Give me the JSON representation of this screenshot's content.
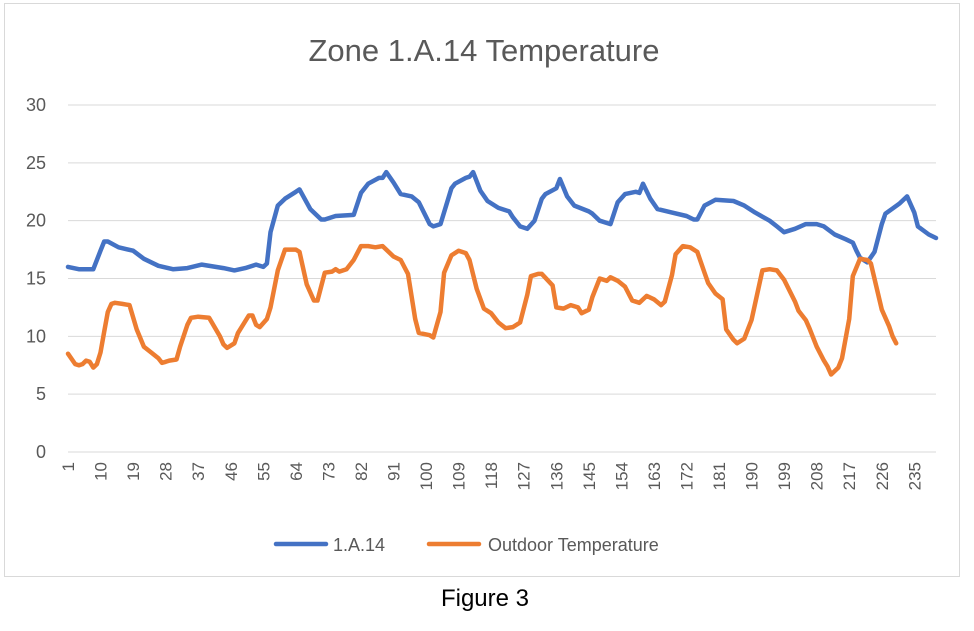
{
  "figure": {
    "caption": "Figure 3"
  },
  "chart_data": {
    "type": "line",
    "title": "Zone 1.A.14 Temperature",
    "xlabel": "",
    "ylabel": "",
    "xlim": [
      1,
      241
    ],
    "ylim": [
      0,
      30
    ],
    "y_ticks": [
      0,
      5,
      10,
      15,
      20,
      25,
      30
    ],
    "x_tick_labels": [
      "1",
      "10",
      "19",
      "28",
      "37",
      "46",
      "55",
      "64",
      "73",
      "82",
      "91",
      "100",
      "109",
      "118",
      "127",
      "136",
      "145",
      "154",
      "163",
      "172",
      "181",
      "190",
      "199",
      "208",
      "217",
      "226",
      "235"
    ],
    "grid": "horizontal",
    "legend_position": "bottom",
    "series": [
      {
        "name": "1.A.14",
        "color": "#4472c4",
        "points": [
          [
            1,
            16.0
          ],
          [
            4,
            15.8
          ],
          [
            8,
            15.8
          ],
          [
            10,
            17.4
          ],
          [
            11,
            18.2
          ],
          [
            12,
            18.2
          ],
          [
            15,
            17.7
          ],
          [
            19,
            17.4
          ],
          [
            22,
            16.7
          ],
          [
            26,
            16.1
          ],
          [
            30,
            15.8
          ],
          [
            34,
            15.9
          ],
          [
            38,
            16.2
          ],
          [
            44,
            15.9
          ],
          [
            47,
            15.7
          ],
          [
            50,
            15.9
          ],
          [
            53,
            16.2
          ],
          [
            55,
            16.0
          ],
          [
            56,
            16.3
          ],
          [
            57,
            19.0
          ],
          [
            59,
            21.3
          ],
          [
            61,
            21.9
          ],
          [
            64,
            22.5
          ],
          [
            65,
            22.7
          ],
          [
            68,
            21.0
          ],
          [
            71,
            20.1
          ],
          [
            72,
            20.1
          ],
          [
            75,
            20.4
          ],
          [
            80,
            20.5
          ],
          [
            82,
            22.4
          ],
          [
            84,
            23.2
          ],
          [
            87,
            23.7
          ],
          [
            88,
            23.7
          ],
          [
            89,
            24.2
          ],
          [
            91,
            23.3
          ],
          [
            93,
            22.3
          ],
          [
            96,
            22.1
          ],
          [
            98,
            21.6
          ],
          [
            101,
            19.7
          ],
          [
            102,
            19.5
          ],
          [
            104,
            19.7
          ],
          [
            107,
            22.8
          ],
          [
            108,
            23.2
          ],
          [
            111,
            23.7
          ],
          [
            112,
            23.8
          ],
          [
            113,
            24.2
          ],
          [
            115,
            22.6
          ],
          [
            117,
            21.7
          ],
          [
            120,
            21.1
          ],
          [
            123,
            20.8
          ],
          [
            124,
            20.3
          ],
          [
            126,
            19.5
          ],
          [
            128,
            19.3
          ],
          [
            130,
            20.0
          ],
          [
            132,
            21.9
          ],
          [
            133,
            22.3
          ],
          [
            136,
            22.8
          ],
          [
            137,
            23.6
          ],
          [
            139,
            22.1
          ],
          [
            141,
            21.3
          ],
          [
            145,
            20.8
          ],
          [
            146,
            20.6
          ],
          [
            148,
            20.0
          ],
          [
            151,
            19.7
          ],
          [
            153,
            21.6
          ],
          [
            155,
            22.3
          ],
          [
            158,
            22.5
          ],
          [
            159,
            22.4
          ],
          [
            160,
            23.2
          ],
          [
            162,
            21.9
          ],
          [
            164,
            21.0
          ],
          [
            168,
            20.7
          ],
          [
            172,
            20.4
          ],
          [
            174,
            20.1
          ],
          [
            175,
            20.1
          ],
          [
            177,
            21.3
          ],
          [
            180,
            21.8
          ],
          [
            185,
            21.7
          ],
          [
            188,
            21.3
          ],
          [
            191,
            20.7
          ],
          [
            195,
            20.0
          ],
          [
            197,
            19.5
          ],
          [
            199,
            19.0
          ],
          [
            202,
            19.3
          ],
          [
            205,
            19.7
          ],
          [
            208,
            19.7
          ],
          [
            210,
            19.5
          ],
          [
            213,
            18.8
          ],
          [
            216,
            18.4
          ],
          [
            218,
            18.1
          ],
          [
            219,
            17.4
          ],
          [
            220,
            16.8
          ],
          [
            222,
            16.4
          ],
          [
            224,
            17.3
          ],
          [
            226,
            19.7
          ],
          [
            227,
            20.6
          ],
          [
            231,
            21.5
          ],
          [
            233,
            22.1
          ],
          [
            235,
            20.7
          ],
          [
            236,
            19.5
          ],
          [
            239,
            18.8
          ],
          [
            241,
            18.5
          ]
        ]
      },
      {
        "name": "Outdoor Temperature",
        "color": "#ed7d31",
        "points": [
          [
            1,
            8.5
          ],
          [
            3,
            7.6
          ],
          [
            4,
            7.5
          ],
          [
            5,
            7.6
          ],
          [
            6,
            7.9
          ],
          [
            7,
            7.8
          ],
          [
            8,
            7.3
          ],
          [
            9,
            7.6
          ],
          [
            10,
            8.6
          ],
          [
            11,
            10.4
          ],
          [
            12,
            12.1
          ],
          [
            13,
            12.8
          ],
          [
            14,
            12.9
          ],
          [
            16,
            12.8
          ],
          [
            18,
            12.7
          ],
          [
            20,
            10.6
          ],
          [
            22,
            9.1
          ],
          [
            24,
            8.6
          ],
          [
            26,
            8.1
          ],
          [
            27,
            7.7
          ],
          [
            28,
            7.8
          ],
          [
            29,
            7.9
          ],
          [
            31,
            8.0
          ],
          [
            32,
            9.1
          ],
          [
            34,
            11.0
          ],
          [
            35,
            11.6
          ],
          [
            37,
            11.7
          ],
          [
            40,
            11.6
          ],
          [
            43,
            10.0
          ],
          [
            44,
            9.3
          ],
          [
            45,
            9.0
          ],
          [
            47,
            9.4
          ],
          [
            48,
            10.3
          ],
          [
            51,
            11.8
          ],
          [
            52,
            11.8
          ],
          [
            53,
            11.0
          ],
          [
            54,
            10.8
          ],
          [
            56,
            11.5
          ],
          [
            57,
            12.5
          ],
          [
            59,
            15.7
          ],
          [
            61,
            17.5
          ],
          [
            63,
            17.5
          ],
          [
            64,
            17.5
          ],
          [
            65,
            17.3
          ],
          [
            67,
            14.5
          ],
          [
            69,
            13.1
          ],
          [
            70,
            13.1
          ],
          [
            72,
            15.5
          ],
          [
            74,
            15.6
          ],
          [
            75,
            15.8
          ],
          [
            76,
            15.6
          ],
          [
            78,
            15.8
          ],
          [
            80,
            16.6
          ],
          [
            82,
            17.8
          ],
          [
            84,
            17.8
          ],
          [
            86,
            17.7
          ],
          [
            88,
            17.8
          ],
          [
            91,
            16.9
          ],
          [
            93,
            16.6
          ],
          [
            95,
            15.4
          ],
          [
            97,
            11.5
          ],
          [
            98,
            10.3
          ],
          [
            101,
            10.1
          ],
          [
            102,
            9.9
          ],
          [
            104,
            12.1
          ],
          [
            105,
            15.5
          ],
          [
            107,
            17.0
          ],
          [
            109,
            17.4
          ],
          [
            111,
            17.2
          ],
          [
            112,
            16.6
          ],
          [
            114,
            14.1
          ],
          [
            116,
            12.4
          ],
          [
            118,
            12.0
          ],
          [
            120,
            11.2
          ],
          [
            122,
            10.7
          ],
          [
            124,
            10.8
          ],
          [
            126,
            11.2
          ],
          [
            128,
            13.6
          ],
          [
            129,
            15.2
          ],
          [
            131,
            15.4
          ],
          [
            132,
            15.4
          ],
          [
            135,
            14.4
          ],
          [
            136,
            12.5
          ],
          [
            138,
            12.4
          ],
          [
            140,
            12.7
          ],
          [
            142,
            12.5
          ],
          [
            143,
            12.0
          ],
          [
            145,
            12.3
          ],
          [
            146,
            13.4
          ],
          [
            148,
            15.0
          ],
          [
            150,
            14.8
          ],
          [
            151,
            15.1
          ],
          [
            153,
            14.8
          ],
          [
            155,
            14.3
          ],
          [
            157,
            13.1
          ],
          [
            159,
            12.9
          ],
          [
            161,
            13.5
          ],
          [
            163,
            13.2
          ],
          [
            165,
            12.7
          ],
          [
            166,
            13.0
          ],
          [
            168,
            15.3
          ],
          [
            169,
            17.1
          ],
          [
            171,
            17.8
          ],
          [
            173,
            17.7
          ],
          [
            175,
            17.3
          ],
          [
            177,
            15.5
          ],
          [
            178,
            14.6
          ],
          [
            180,
            13.7
          ],
          [
            182,
            13.2
          ],
          [
            183,
            10.6
          ],
          [
            185,
            9.7
          ],
          [
            186,
            9.4
          ],
          [
            188,
            9.8
          ],
          [
            190,
            11.4
          ],
          [
            193,
            15.7
          ],
          [
            195,
            15.8
          ],
          [
            197,
            15.7
          ],
          [
            199,
            14.9
          ],
          [
            202,
            13.0
          ],
          [
            203,
            12.2
          ],
          [
            205,
            11.4
          ],
          [
            206,
            10.7
          ],
          [
            208,
            9.1
          ],
          [
            210,
            7.9
          ],
          [
            211,
            7.4
          ],
          [
            212,
            6.7
          ],
          [
            214,
            7.3
          ],
          [
            215,
            8.1
          ],
          [
            217,
            11.5
          ],
          [
            218,
            15.2
          ],
          [
            220,
            16.7
          ],
          [
            222,
            16.6
          ],
          [
            223,
            16.3
          ],
          [
            226,
            12.3
          ],
          [
            228,
            10.9
          ],
          [
            229,
            10.0
          ],
          [
            230,
            9.4
          ]
        ]
      }
    ]
  }
}
